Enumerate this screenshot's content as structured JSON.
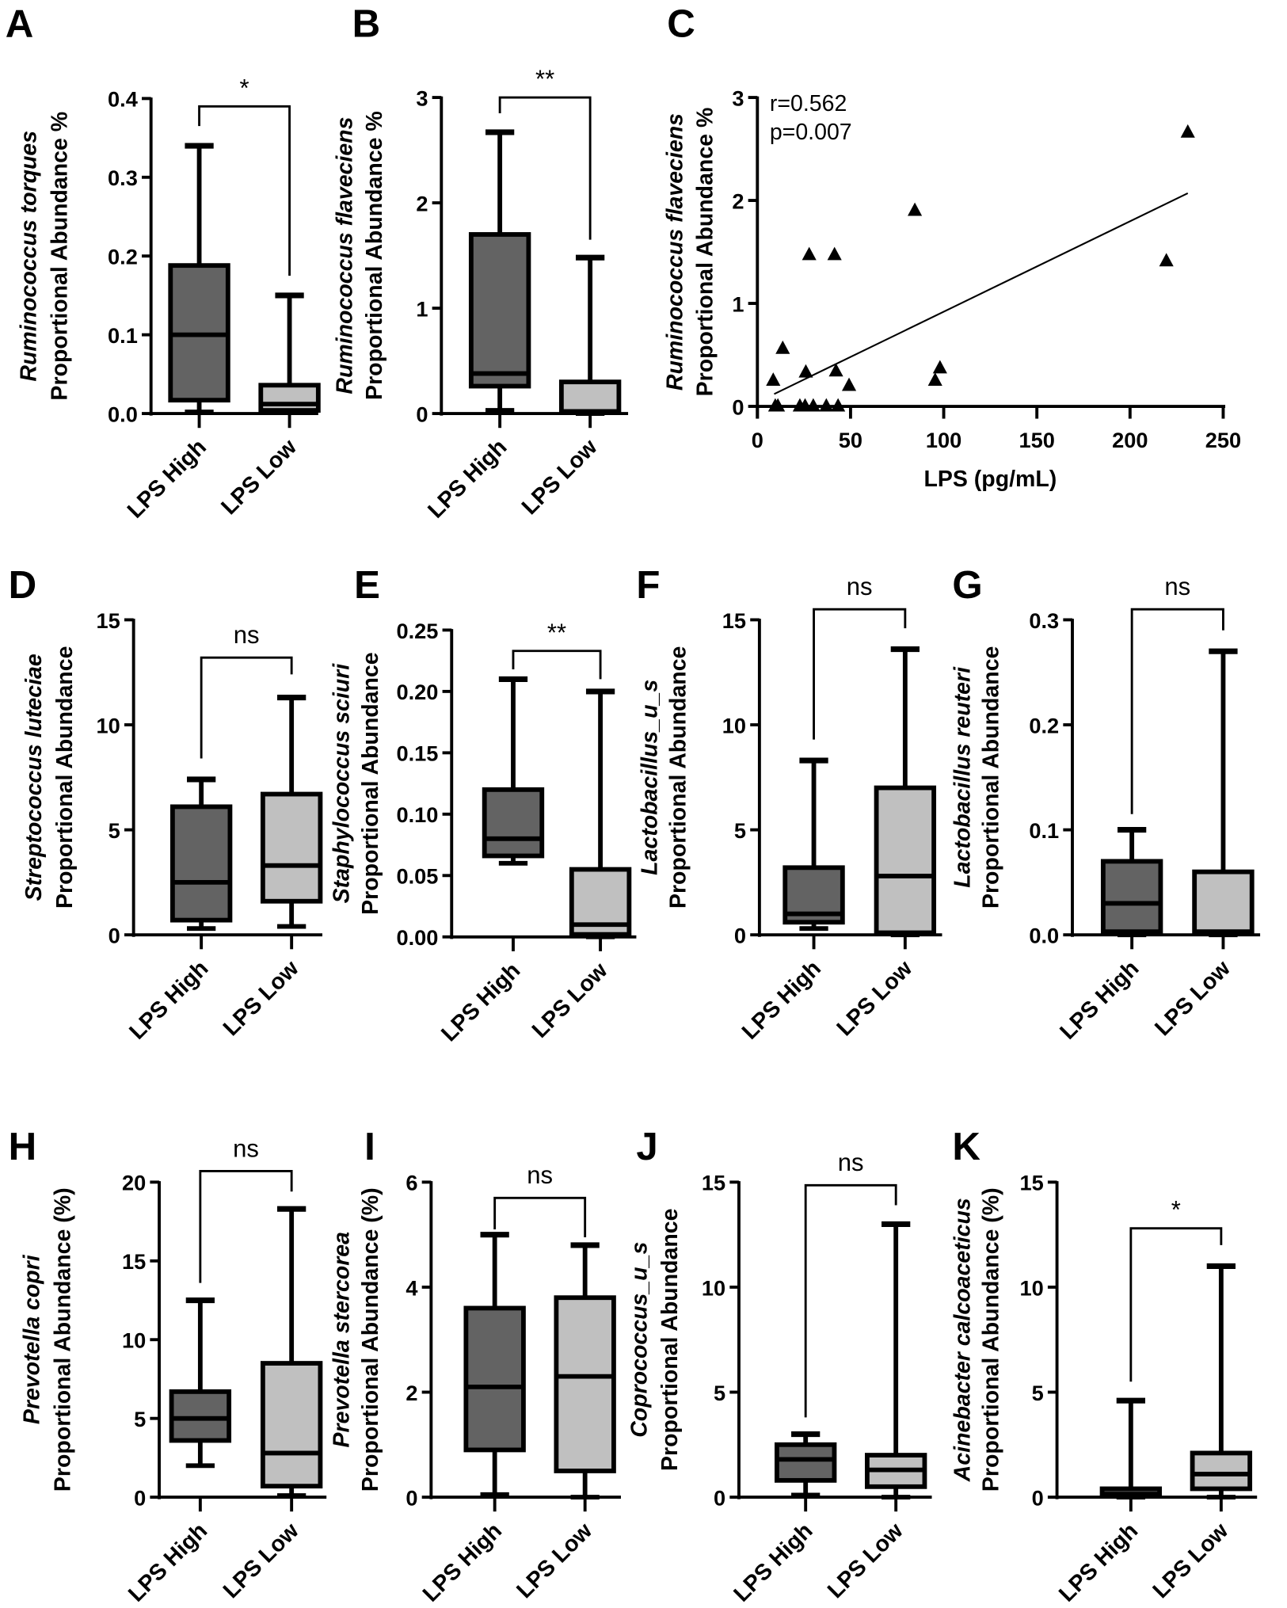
{
  "colors": {
    "high": "#636363",
    "low": "#c0c0c0",
    "ink": "#000000"
  },
  "categories": [
    "LPS High",
    "LPS Low"
  ],
  "panels": [
    {
      "letter": "A",
      "ylabel_italic": "Ruminococcus torques",
      "ylabel": "Proportional Abundance %",
      "ylim": [
        0,
        0.4
      ],
      "yticks": [
        "0.0",
        "0.1",
        "0.2",
        "0.3",
        "0.4"
      ],
      "groups": [
        {
          "name": "LPS High",
          "min": 0.002,
          "q1": 0.017,
          "median": 0.1,
          "q3": 0.188,
          "max": 0.34
        },
        {
          "name": "LPS Low",
          "min": 0.002,
          "q1": 0.004,
          "median": 0.012,
          "q3": 0.036,
          "max": 0.15
        }
      ],
      "significance": {
        "label": "*",
        "bracket": 0.39,
        "left_end": 0.365,
        "right_end": 0.175
      }
    },
    {
      "letter": "B",
      "ylabel_italic": "Ruminococcus flaveciens",
      "ylabel": "Proportional Abundance %",
      "ylim": [
        0,
        3
      ],
      "yticks": [
        "0",
        "1",
        "2",
        "3"
      ],
      "groups": [
        {
          "name": "LPS High",
          "min": 0.03,
          "q1": 0.26,
          "median": 0.38,
          "q3": 1.7,
          "max": 2.67
        },
        {
          "name": "LPS Low",
          "min": 0.0,
          "q1": 0.01,
          "median": 0.02,
          "q3": 0.3,
          "max": 1.48
        }
      ],
      "significance": {
        "label": "**",
        "bracket": 3.0,
        "left_end": 2.85,
        "right_end": 1.65
      }
    },
    {
      "letter": "D",
      "ylabel_italic": "Streptococcus luteciae",
      "ylabel": "Proportional Abundance",
      "ylim": [
        0,
        15
      ],
      "yticks": [
        "0",
        "5",
        "10",
        "15"
      ],
      "groups": [
        {
          "name": "LPS High",
          "min": 0.3,
          "q1": 0.7,
          "median": 2.5,
          "q3": 6.1,
          "max": 7.4
        },
        {
          "name": "LPS Low",
          "min": 0.4,
          "q1": 1.6,
          "median": 3.3,
          "q3": 6.7,
          "max": 11.3
        }
      ],
      "significance": {
        "label": "ns",
        "bracket": 13.2,
        "left_end": 8.4,
        "right_end": 12.4
      }
    },
    {
      "letter": "E",
      "ylabel_italic": "Staphylococcus sciuri",
      "ylabel": "Proportional Abundance",
      "ylim": [
        0,
        0.25
      ],
      "yticks": [
        "0.00",
        "0.05",
        "0.10",
        "0.15",
        "0.20",
        "0.25"
      ],
      "groups": [
        {
          "name": "LPS High",
          "min": 0.06,
          "q1": 0.066,
          "median": 0.08,
          "q3": 0.12,
          "max": 0.21
        },
        {
          "name": "LPS Low",
          "min": 0.0,
          "q1": 0.002,
          "median": 0.01,
          "q3": 0.055,
          "max": 0.2
        }
      ],
      "significance": {
        "label": "**",
        "bracket": 0.233,
        "left_end": 0.218,
        "right_end": 0.21
      }
    },
    {
      "letter": "F",
      "ylabel_italic": "Lactobacillus_u_s",
      "ylabel": "Proportional Abundance",
      "ylim": [
        0,
        15
      ],
      "yticks": [
        "0",
        "5",
        "10",
        "15"
      ],
      "groups": [
        {
          "name": "LPS High",
          "min": 0.3,
          "q1": 0.6,
          "median": 1.0,
          "q3": 3.2,
          "max": 8.3
        },
        {
          "name": "LPS Low",
          "min": 0.0,
          "q1": 0.1,
          "median": 2.8,
          "q3": 7.0,
          "max": 13.6
        }
      ],
      "significance": {
        "label": "ns",
        "bracket": 15.5,
        "left_end": 9.3,
        "right_end": 14.6
      }
    },
    {
      "letter": "G",
      "ylabel_italic": "Lactobacillus reuteri",
      "ylabel": "Proportional Abundance",
      "ylim": [
        0,
        0.3
      ],
      "yticks": [
        "0.0",
        "0.1",
        "0.2",
        "0.3"
      ],
      "groups": [
        {
          "name": "LPS High",
          "min": 0.0,
          "q1": 0.003,
          "median": 0.03,
          "q3": 0.07,
          "max": 0.1
        },
        {
          "name": "LPS Low",
          "min": 0.0,
          "q1": 0.002,
          "median": 0.003,
          "q3": 0.06,
          "max": 0.27
        }
      ],
      "significance": {
        "label": "ns",
        "bracket": 0.31,
        "left_end": 0.115,
        "right_end": 0.29
      }
    },
    {
      "letter": "H",
      "ylabel_italic": "Prevotella copri",
      "ylabel": "Proportional Abundance (%)",
      "ylim": [
        0,
        20
      ],
      "yticks": [
        "0",
        "5",
        "10",
        "15",
        "20"
      ],
      "groups": [
        {
          "name": "LPS High",
          "min": 2.0,
          "q1": 3.6,
          "median": 5.0,
          "q3": 6.7,
          "max": 12.5
        },
        {
          "name": "LPS Low",
          "min": 0.1,
          "q1": 0.7,
          "median": 2.8,
          "q3": 8.5,
          "max": 18.3
        }
      ],
      "significance": {
        "label": "ns",
        "bracket": 20.7,
        "left_end": 13.6,
        "right_end": 19.4
      }
    },
    {
      "letter": "I",
      "ylabel_italic": "Prevotella stercorea",
      "ylabel": "Proportional Abundance (%)",
      "ylim": [
        0,
        6
      ],
      "yticks": [
        "0",
        "2",
        "4",
        "6"
      ],
      "groups": [
        {
          "name": "LPS High",
          "min": 0.05,
          "q1": 0.9,
          "median": 2.1,
          "q3": 3.6,
          "max": 5.0
        },
        {
          "name": "LPS Low",
          "min": 0.0,
          "q1": 0.5,
          "median": 2.3,
          "q3": 3.8,
          "max": 4.8
        }
      ],
      "significance": {
        "label": "ns",
        "bracket": 5.7,
        "left_end": 5.1,
        "right_end": 4.95
      }
    },
    {
      "letter": "J",
      "ylabel_italic": "Coprococcus_u_s",
      "ylabel": "Proportional Abundance",
      "ylim": [
        0,
        15
      ],
      "yticks": [
        "0",
        "5",
        "10",
        "15"
      ],
      "groups": [
        {
          "name": "LPS High",
          "min": 0.1,
          "q1": 0.8,
          "median": 1.8,
          "q3": 2.5,
          "max": 3.0
        },
        {
          "name": "LPS Low",
          "min": 0.0,
          "q1": 0.5,
          "median": 1.3,
          "q3": 2.0,
          "max": 13.0
        }
      ],
      "significance": {
        "label": "ns",
        "bracket": 14.85,
        "left_end": 3.8,
        "right_end": 13.9
      }
    },
    {
      "letter": "K",
      "ylabel_italic": "Acinebacter calcoaceticus",
      "ylabel": "Proportional Abundance (%)",
      "ylim": [
        0,
        15
      ],
      "yticks": [
        "0",
        "5",
        "10",
        "15"
      ],
      "groups": [
        {
          "name": "LPS High",
          "min": 0.0,
          "q1": 0.05,
          "median": 0.15,
          "q3": 0.4,
          "max": 4.6
        },
        {
          "name": "LPS Low",
          "min": 0.0,
          "q1": 0.4,
          "median": 1.1,
          "q3": 2.1,
          "max": 11.0
        }
      ],
      "significance": {
        "label": "*",
        "bracket": 12.8,
        "left_end": 5.5,
        "right_end": 12.0
      }
    }
  ],
  "chart_data": {
    "type": "scatter",
    "letter": "C",
    "xlabel": "LPS (pg/mL)",
    "ylabel_italic": "Ruminococcus flaveciens",
    "ylabel": "Proportional Abundance %",
    "xlim": [
      0,
      250
    ],
    "ylim": [
      0,
      3
    ],
    "xticks": [
      "0",
      "50",
      "100",
      "150",
      "200",
      "250"
    ],
    "yticks": [
      "0",
      "1",
      "2",
      "3"
    ],
    "marker": "triangle",
    "annotation_r": "r=0.562",
    "annotation_p": "p=0.007",
    "points": [
      [
        8.5,
        0.25
      ],
      [
        13.6,
        0.56
      ],
      [
        9.6,
        0
      ],
      [
        11,
        0
      ],
      [
        26,
        0.33
      ],
      [
        27.8,
        1.47
      ],
      [
        41.4,
        1.47
      ],
      [
        42.2,
        0.34
      ],
      [
        49.2,
        0.2
      ],
      [
        22.8,
        0
      ],
      [
        25.6,
        0
      ],
      [
        30,
        0
      ],
      [
        37,
        0
      ],
      [
        43.3,
        0
      ],
      [
        84.5,
        1.9
      ],
      [
        95.4,
        0.25
      ],
      [
        98,
        0.37
      ],
      [
        219.5,
        1.41
      ],
      [
        231,
        2.66
      ]
    ],
    "fit_line": [
      [
        9,
        0.12
      ],
      [
        231,
        2.07
      ]
    ]
  }
}
